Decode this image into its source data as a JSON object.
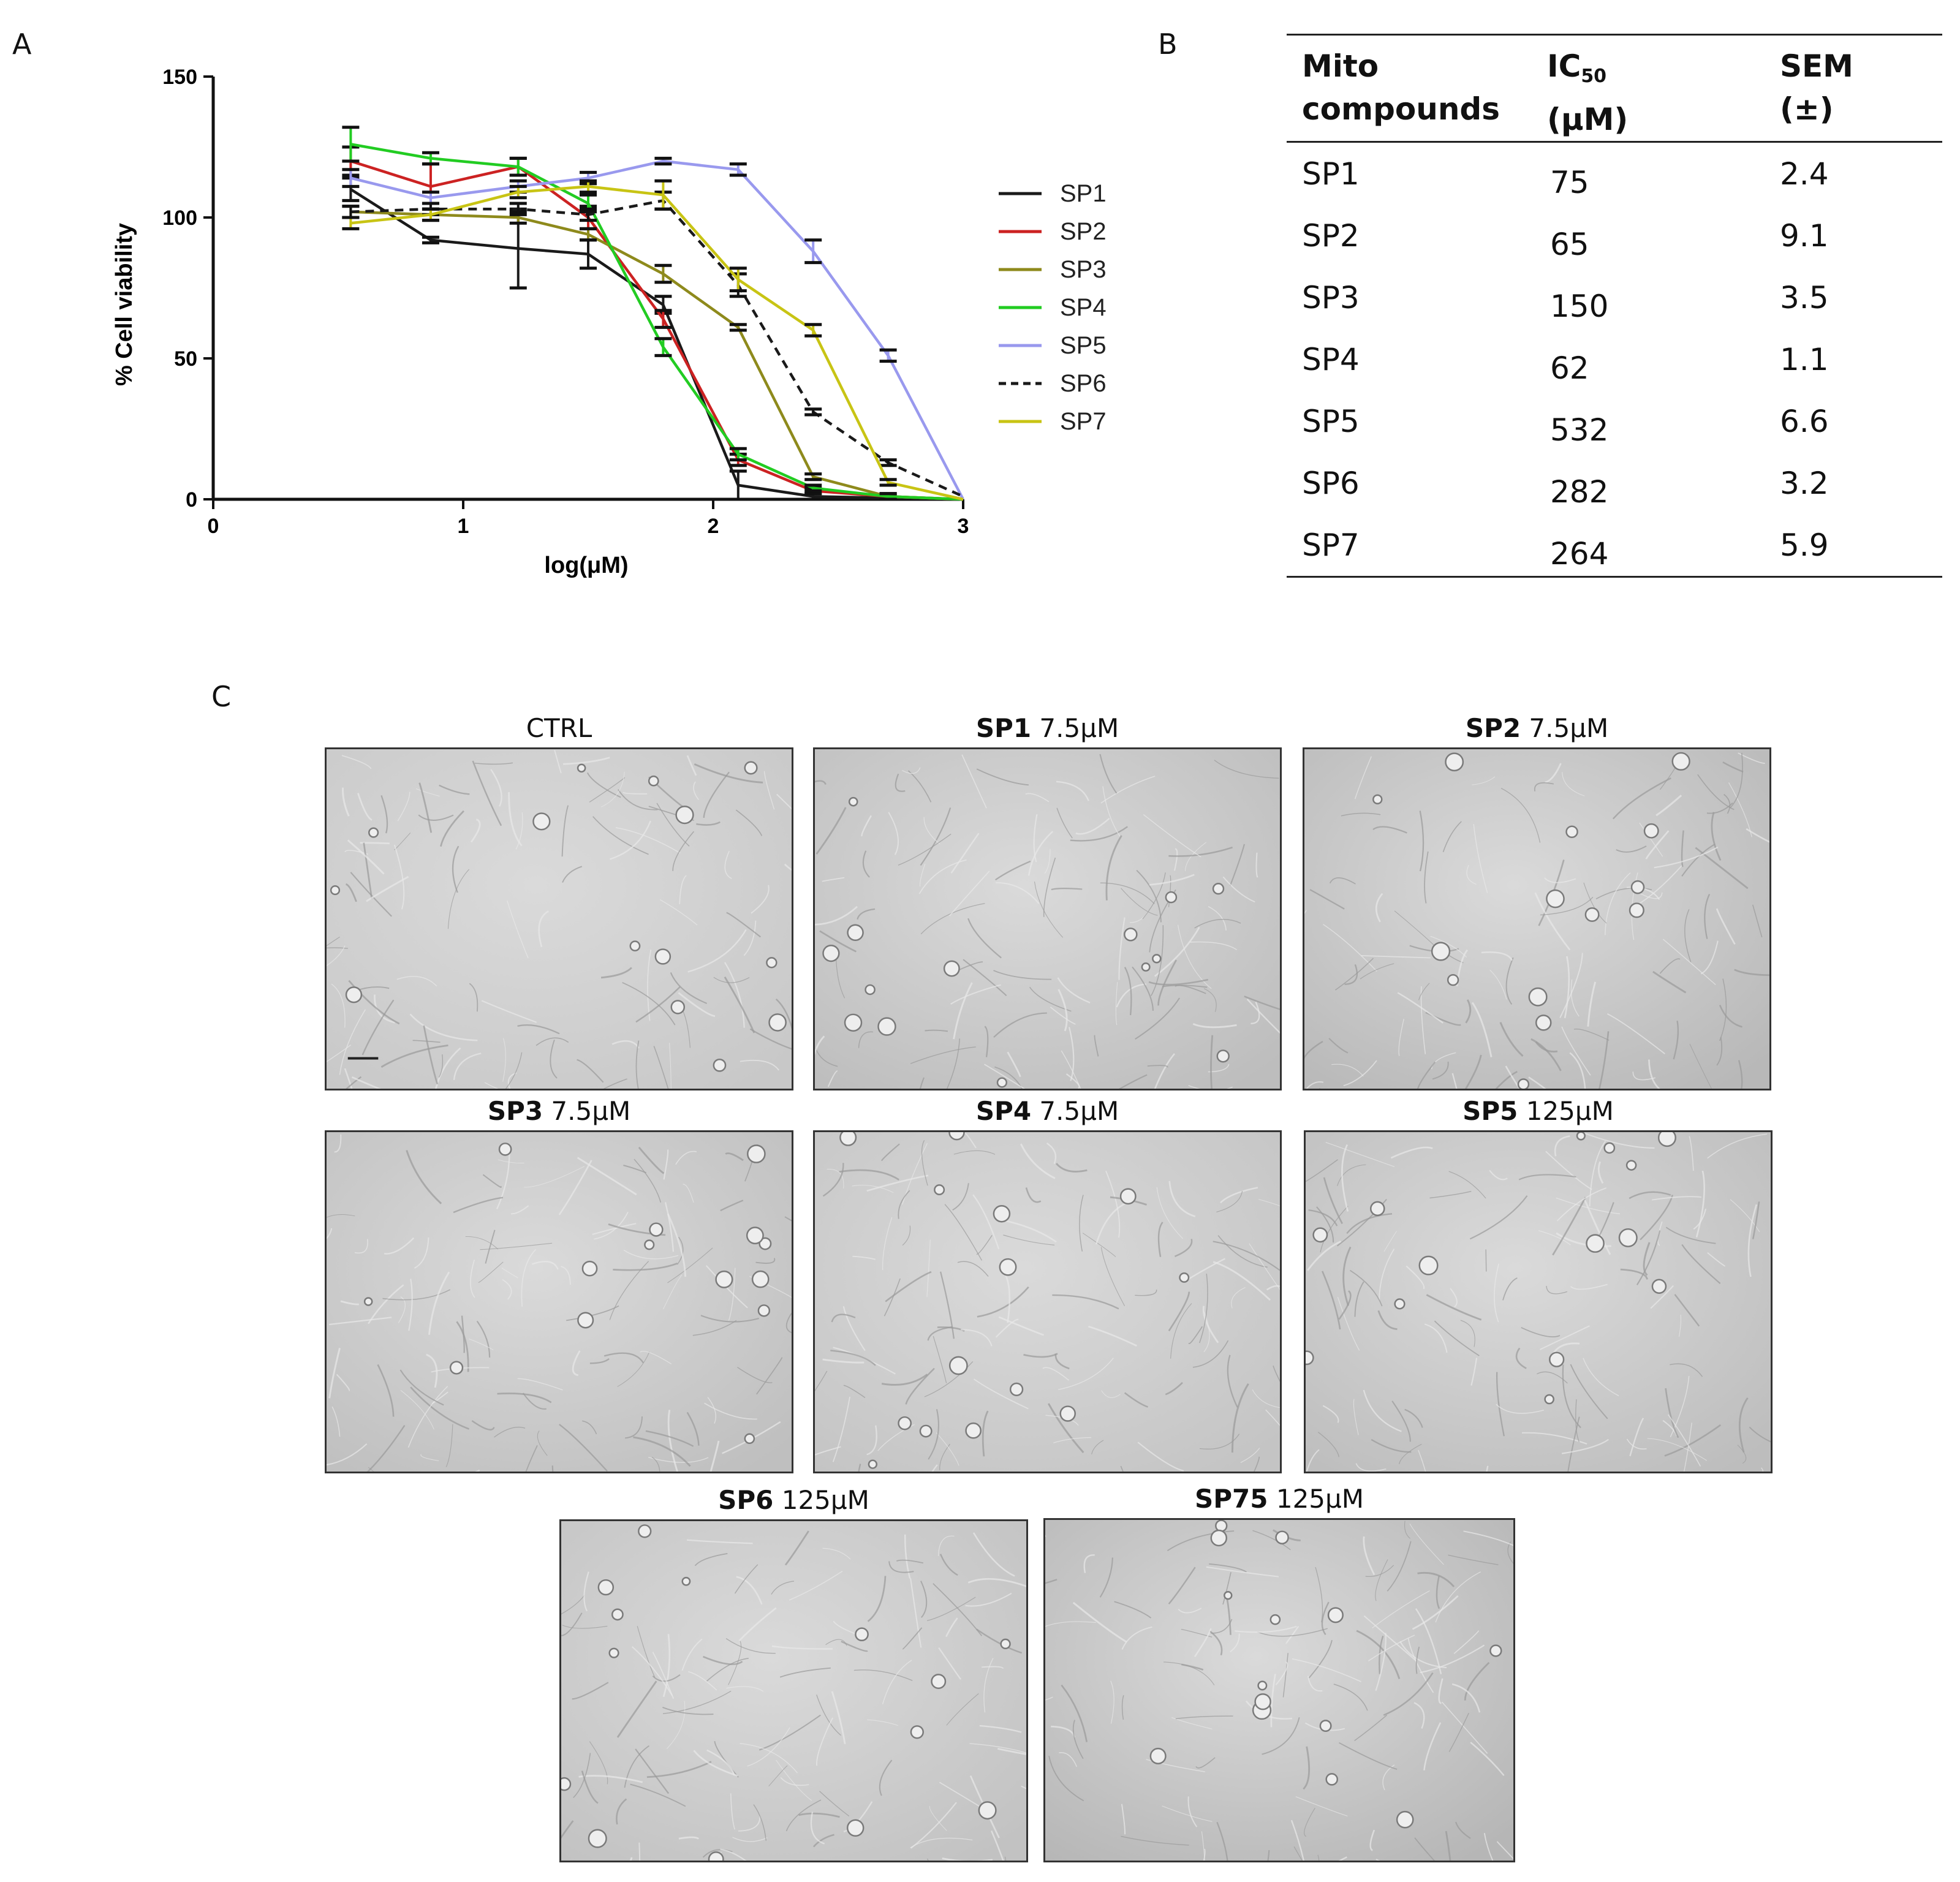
{
  "panels": {
    "a": "A",
    "b": "B",
    "c": "C"
  },
  "chart_data": {
    "type": "line",
    "title": "",
    "xlabel": "log(μM)",
    "ylabel": "% Cell viability",
    "xlim": [
      0,
      3
    ],
    "ylim": [
      0,
      150
    ],
    "xticks": [
      0,
      1,
      2,
      3
    ],
    "yticks": [
      0,
      50,
      100,
      150
    ],
    "grid": false,
    "legend_position": "right",
    "series": [
      {
        "name": "SP1",
        "color": "#1a1a1a",
        "dash": false,
        "x": [
          0.55,
          0.87,
          1.22,
          1.5,
          1.8,
          2.1,
          2.4,
          2.7,
          3.0
        ],
        "y": [
          110,
          92,
          89,
          87,
          69,
          5,
          1,
          0.5,
          0
        ],
        "err": [
          4,
          1,
          14,
          5,
          3,
          5,
          1,
          1,
          0
        ]
      },
      {
        "name": "SP2",
        "color": "#cc2222",
        "dash": false,
        "x": [
          0.55,
          0.87,
          1.22,
          1.5,
          1.8,
          2.1,
          2.4,
          2.7,
          3.0
        ],
        "y": [
          120,
          111,
          118,
          100,
          64,
          14,
          3,
          1,
          0
        ],
        "err": [
          5,
          8,
          3,
          4,
          3,
          2,
          1,
          1,
          0
        ]
      },
      {
        "name": "SP3",
        "color": "#8e8a1c",
        "dash": false,
        "x": [
          0.55,
          0.87,
          1.22,
          1.5,
          1.8,
          2.1,
          2.4,
          2.7,
          3.0
        ],
        "y": [
          102,
          101,
          100,
          94,
          80,
          61,
          8,
          1,
          0
        ],
        "err": [
          2,
          2,
          2,
          2,
          3,
          1,
          1,
          1,
          0
        ]
      },
      {
        "name": "SP4",
        "color": "#22cc22",
        "dash": false,
        "x": [
          0.55,
          0.87,
          1.22,
          1.5,
          1.8,
          2.1,
          2.4,
          2.7,
          3.0
        ],
        "y": [
          126,
          121,
          118,
          105,
          54,
          16,
          4,
          1,
          0
        ],
        "err": [
          6,
          2,
          3,
          3,
          3,
          2,
          1,
          1,
          0
        ]
      },
      {
        "name": "SP5",
        "color": "#9999ee",
        "dash": false,
        "x": [
          0.55,
          0.87,
          1.22,
          1.5,
          1.8,
          2.1,
          2.4,
          2.7,
          3.0
        ],
        "y": [
          114,
          107,
          111,
          114,
          120,
          117,
          88,
          51,
          0
        ],
        "err": [
          3,
          2,
          2,
          2,
          1,
          2,
          4,
          2,
          0
        ]
      },
      {
        "name": "SP6",
        "color": "#1a1a1a",
        "dash": true,
        "x": [
          0.55,
          0.87,
          1.22,
          1.5,
          1.8,
          2.1,
          2.4,
          2.7,
          3.0
        ],
        "y": [
          102,
          103,
          103,
          101,
          106,
          76,
          31,
          13,
          1
        ],
        "err": [
          2,
          2,
          2,
          2,
          3,
          4,
          1,
          1,
          0
        ]
      },
      {
        "name": "SP7",
        "color": "#c8c414",
        "dash": false,
        "x": [
          0.55,
          0.87,
          1.22,
          1.5,
          1.8,
          2.1,
          2.4,
          2.7,
          3.0
        ],
        "y": [
          98,
          101,
          109,
          111,
          108,
          78,
          60,
          6,
          0
        ],
        "err": [
          2,
          2,
          2,
          2,
          5,
          4,
          2,
          1,
          0
        ]
      }
    ]
  },
  "table": {
    "headers": [
      {
        "line1": "Mito",
        "line2": "compounds"
      },
      {
        "line1": "IC",
        "sub": "50",
        "line2": "(μM)"
      },
      {
        "line1": "SEM",
        "line2": "(±)"
      }
    ],
    "rows": [
      [
        "SP1",
        "75",
        "2.4"
      ],
      [
        "SP2",
        "65",
        "9.1"
      ],
      [
        "SP3",
        "150",
        "3.5"
      ],
      [
        "SP4",
        "62",
        "1.1"
      ],
      [
        "SP5",
        "532",
        "6.6"
      ],
      [
        "SP6",
        "282",
        "3.2"
      ],
      [
        "SP7",
        "264",
        "5.9"
      ]
    ]
  },
  "micrographs": [
    {
      "bold": "",
      "rest": "CTRL"
    },
    {
      "bold": "SP1",
      "rest": " 7.5μM"
    },
    {
      "bold": "SP2",
      "rest": " 7.5μM"
    },
    {
      "bold": "SP3",
      "rest": " 7.5μM"
    },
    {
      "bold": "SP4",
      "rest": " 7.5μM"
    },
    {
      "bold": "SP5",
      "rest": " 125μM"
    },
    {
      "bold": "SP6",
      "rest": " 125μM"
    },
    {
      "bold": "SP75",
      "rest": " 125μM"
    }
  ]
}
